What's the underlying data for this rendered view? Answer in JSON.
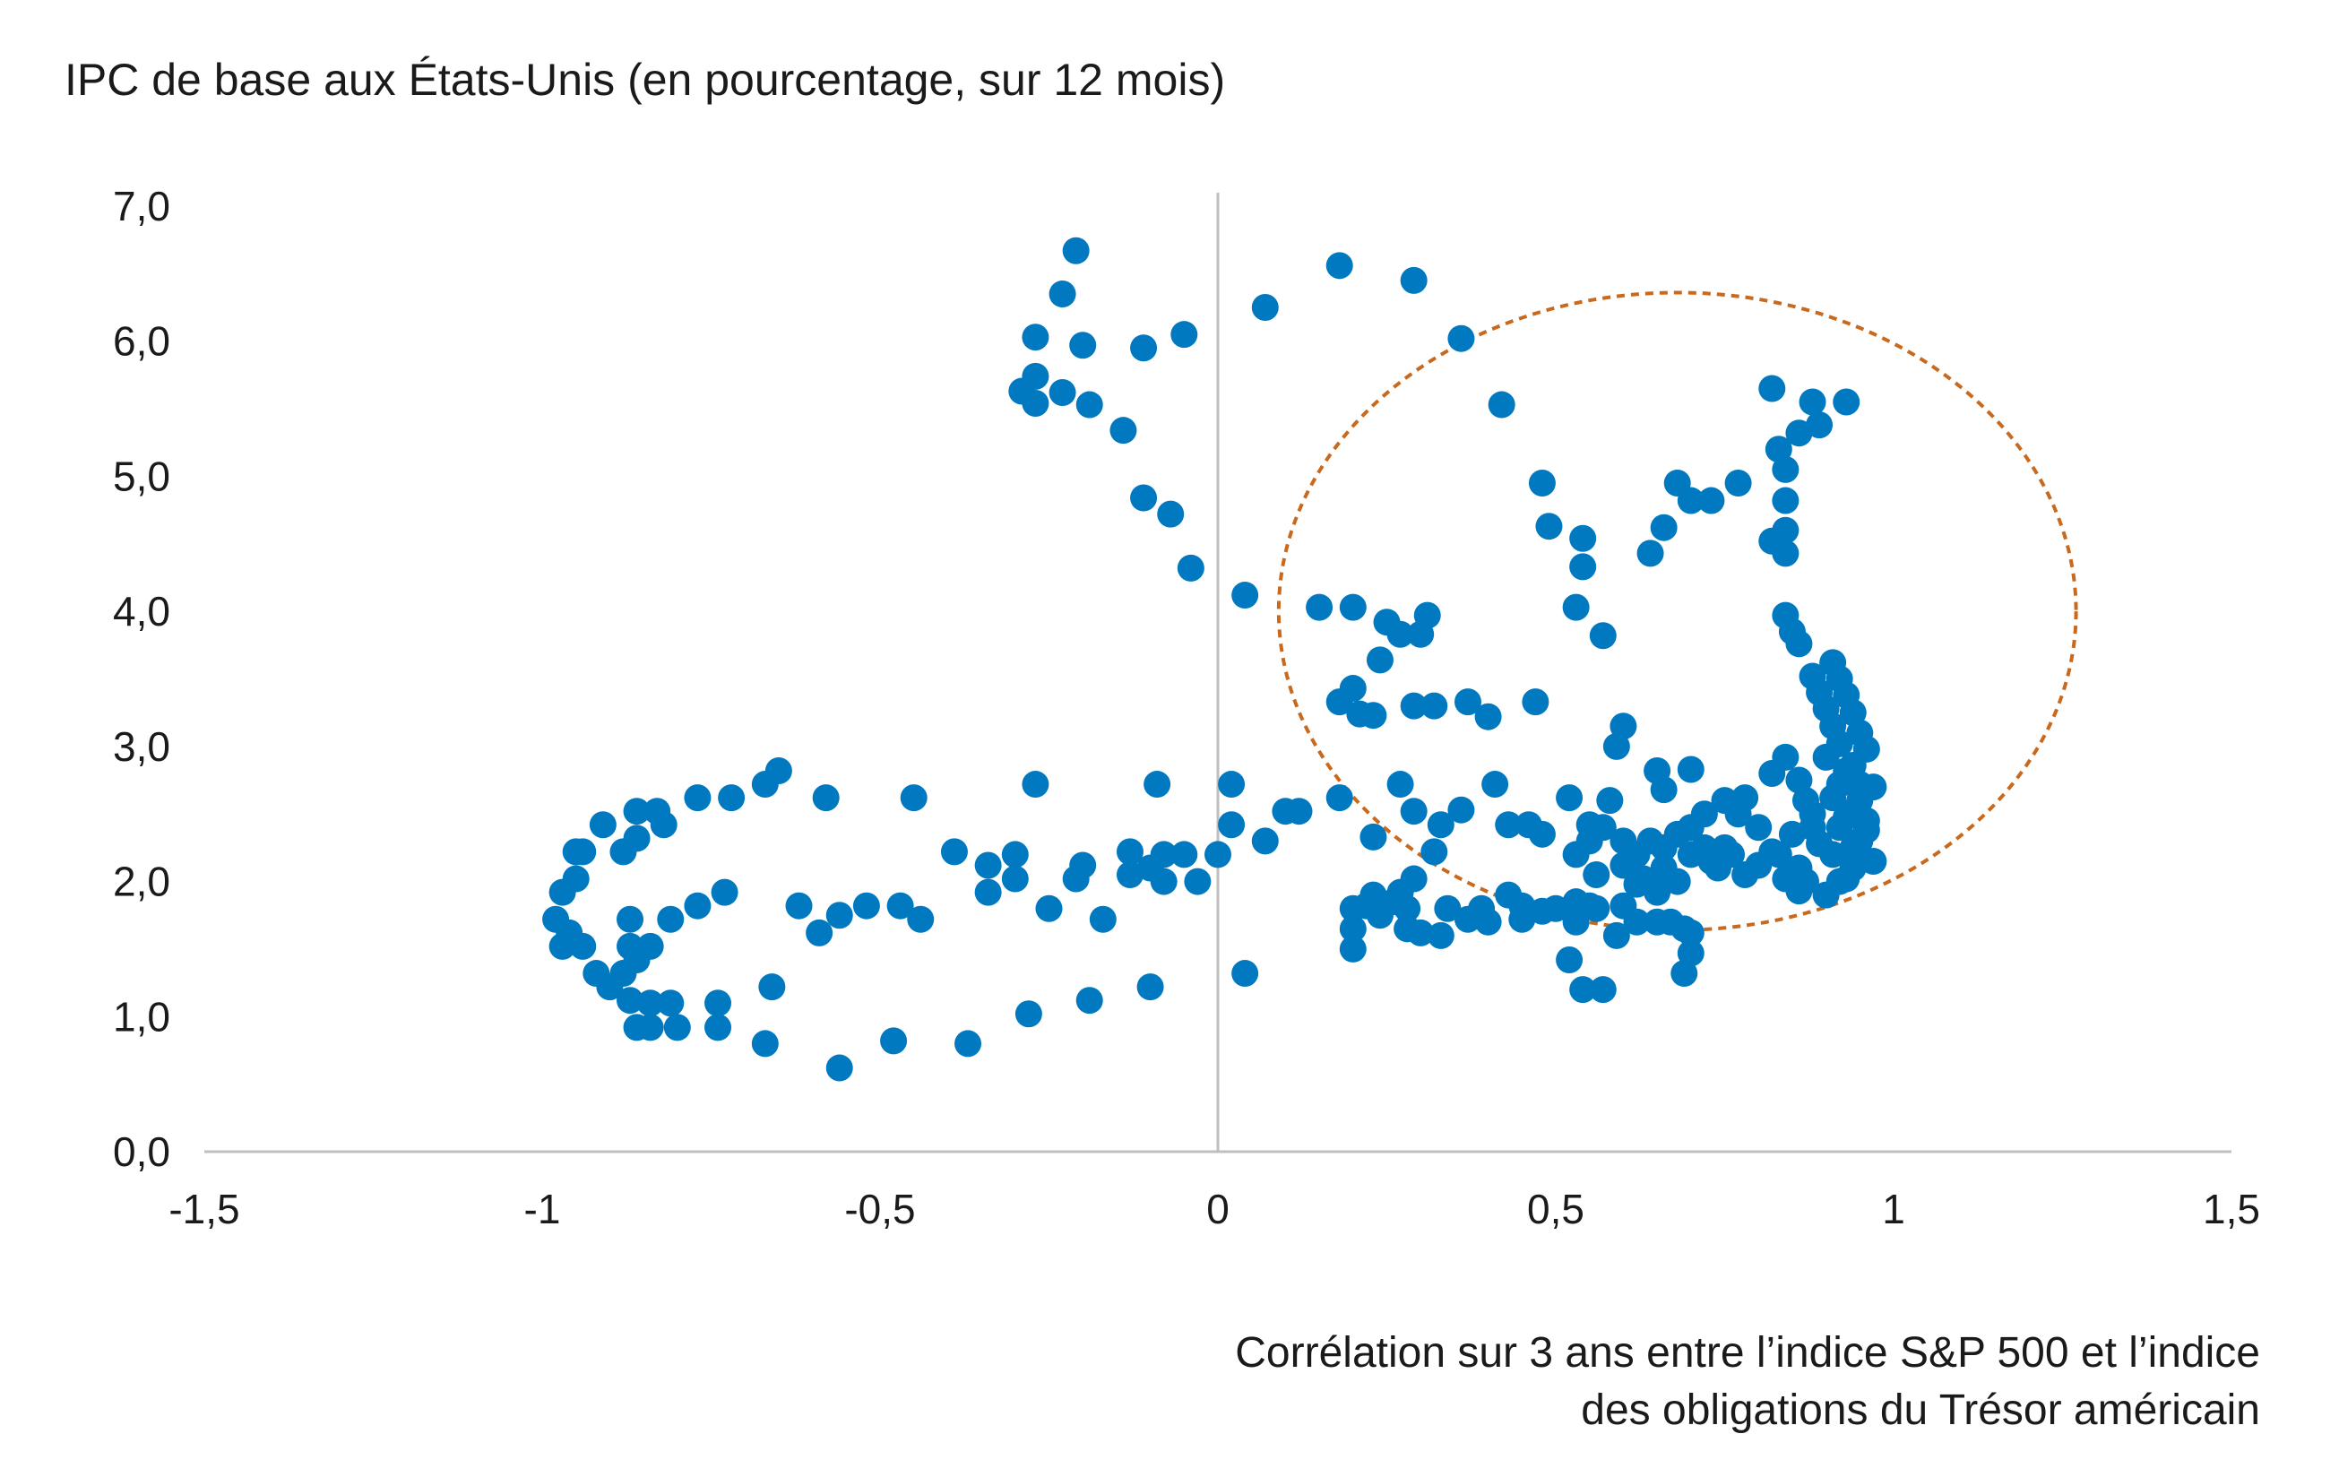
{
  "chart_data": {
    "type": "scatter",
    "ylabel": "IPC de base aux États-Unis (en pourcentage, sur 12 mois)",
    "xlabel_lines": [
      "Corrélation sur 3 ans entre l’indice S&P 500 et l’indice",
      "des obligations du Trésor américain"
    ],
    "xlim": [
      -1.5,
      1.5
    ],
    "ylim": [
      0,
      7
    ],
    "x_ticks": [
      -1.5,
      -1,
      -0.5,
      0,
      0.5,
      1,
      1.5
    ],
    "x_tick_labels": [
      "-1,5",
      "-1",
      "-0,5",
      "0",
      "0,5",
      "1",
      "1,5"
    ],
    "y_ticks": [
      0,
      1,
      2,
      3,
      4,
      5,
      6,
      7
    ],
    "y_tick_labels": [
      "0,0",
      "1,0",
      "2,0",
      "3,0",
      "4,0",
      "5,0",
      "6,0",
      "7,0"
    ],
    "grid": false,
    "point_color": "#0079C1",
    "annotation": {
      "shape": "dashed-ellipse",
      "color": "#C8691E",
      "center": [
        0.68,
        4.0
      ],
      "radii": [
        0.59,
        2.36
      ]
    },
    "points": [
      [
        -0.21,
        6.67
      ],
      [
        -0.23,
        6.35
      ],
      [
        -0.27,
        6.03
      ],
      [
        -0.2,
        5.97
      ],
      [
        -0.11,
        5.95
      ],
      [
        -0.05,
        6.05
      ],
      [
        -0.29,
        5.63
      ],
      [
        -0.27,
        5.74
      ],
      [
        -0.27,
        5.54
      ],
      [
        -0.23,
        5.62
      ],
      [
        -0.19,
        5.53
      ],
      [
        -0.14,
        5.34
      ],
      [
        -0.11,
        4.84
      ],
      [
        -0.07,
        4.72
      ],
      [
        -0.04,
        4.32
      ],
      [
        0.04,
        4.12
      ],
      [
        0.07,
        6.25
      ],
      [
        0.18,
        6.56
      ],
      [
        0.29,
        6.45
      ],
      [
        0.36,
        6.02
      ],
      [
        0.42,
        5.53
      ],
      [
        0.48,
        4.95
      ],
      [
        0.49,
        4.63
      ],
      [
        0.54,
        4.54
      ],
      [
        0.54,
        4.33
      ],
      [
        0.53,
        4.03
      ],
      [
        0.57,
        3.82
      ],
      [
        0.64,
        4.43
      ],
      [
        0.66,
        4.62
      ],
      [
        0.68,
        4.95
      ],
      [
        0.7,
        4.82
      ],
      [
        0.73,
        4.82
      ],
      [
        0.77,
        4.95
      ],
      [
        0.82,
        5.65
      ],
      [
        0.88,
        5.55
      ],
      [
        0.93,
        5.55
      ],
      [
        0.86,
        5.32
      ],
      [
        0.89,
        5.38
      ],
      [
        0.83,
        5.2
      ],
      [
        0.84,
        5.05
      ],
      [
        0.84,
        4.82
      ],
      [
        0.84,
        4.6
      ],
      [
        0.82,
        4.52
      ],
      [
        0.84,
        4.43
      ],
      [
        0.84,
        3.97
      ],
      [
        0.85,
        3.85
      ],
      [
        0.86,
        3.76
      ],
      [
        0.15,
        4.03
      ],
      [
        0.2,
        4.03
      ],
      [
        0.25,
        3.92
      ],
      [
        0.27,
        3.83
      ],
      [
        0.3,
        3.83
      ],
      [
        0.31,
        3.97
      ],
      [
        0.24,
        3.64
      ],
      [
        0.18,
        3.33
      ],
      [
        0.2,
        3.43
      ],
      [
        0.21,
        3.24
      ],
      [
        0.23,
        3.23
      ],
      [
        0.29,
        3.3
      ],
      [
        0.32,
        3.3
      ],
      [
        0.37,
        3.33
      ],
      [
        0.4,
        3.22
      ],
      [
        0.47,
        3.33
      ],
      [
        0.59,
        3.0
      ],
      [
        0.6,
        3.15
      ],
      [
        0.65,
        2.82
      ],
      [
        0.66,
        2.68
      ],
      [
        0.7,
        2.83
      ],
      [
        0.88,
        3.52
      ],
      [
        0.91,
        3.62
      ],
      [
        0.92,
        3.5
      ],
      [
        0.93,
        3.38
      ],
      [
        0.94,
        3.25
      ],
      [
        0.95,
        3.1
      ],
      [
        0.96,
        2.98
      ],
      [
        0.94,
        2.86
      ],
      [
        0.92,
        2.72
      ],
      [
        0.95,
        2.6
      ],
      [
        0.93,
        2.48
      ],
      [
        0.96,
        2.38
      ],
      [
        0.94,
        2.25
      ],
      [
        0.97,
        2.15
      ],
      [
        0.93,
        2.02
      ],
      [
        0.9,
        1.9
      ],
      [
        0.89,
        3.4
      ],
      [
        0.9,
        3.28
      ],
      [
        0.91,
        3.15
      ],
      [
        0.92,
        3.02
      ],
      [
        0.9,
        2.92
      ],
      [
        0.93,
        2.82
      ],
      [
        0.95,
        2.72
      ],
      [
        0.91,
        2.62
      ],
      [
        0.94,
        2.52
      ],
      [
        0.92,
        2.4
      ],
      [
        0.95,
        2.3
      ],
      [
        0.91,
        2.2
      ],
      [
        0.94,
        2.1
      ],
      [
        0.92,
        2.0
      ],
      [
        0.96,
        2.45
      ],
      [
        0.97,
        2.7
      ],
      [
        0.82,
        2.8
      ],
      [
        0.84,
        2.92
      ],
      [
        0.86,
        2.75
      ],
      [
        0.87,
        2.6
      ],
      [
        0.88,
        2.5
      ],
      [
        0.85,
        2.35
      ],
      [
        0.83,
        2.2
      ],
      [
        0.86,
        2.1
      ],
      [
        0.87,
        2.0
      ],
      [
        0.84,
        2.02
      ],
      [
        0.86,
        1.93
      ],
      [
        0.89,
        2.28
      ],
      [
        0.88,
        2.4
      ],
      [
        0.8,
        2.4
      ],
      [
        0.78,
        2.62
      ],
      [
        0.77,
        2.5
      ],
      [
        0.76,
        2.2
      ],
      [
        0.74,
        2.1
      ],
      [
        0.72,
        2.25
      ],
      [
        0.7,
        2.4
      ],
      [
        0.72,
        2.5
      ],
      [
        0.75,
        2.6
      ],
      [
        0.68,
        2.35
      ],
      [
        0.66,
        2.25
      ],
      [
        0.64,
        2.3
      ],
      [
        0.62,
        2.2
      ],
      [
        0.6,
        2.3
      ],
      [
        0.58,
        2.6
      ],
      [
        0.57,
        2.4
      ],
      [
        0.55,
        2.3
      ],
      [
        0.53,
        2.2
      ],
      [
        0.56,
        2.05
      ],
      [
        0.6,
        2.12
      ],
      [
        0.63,
        2.02
      ],
      [
        0.66,
        2.1
      ],
      [
        0.68,
        2.0
      ],
      [
        0.7,
        2.2
      ],
      [
        0.73,
        2.15
      ],
      [
        0.75,
        2.25
      ],
      [
        0.78,
        2.05
      ],
      [
        0.8,
        2.12
      ],
      [
        0.82,
        2.22
      ],
      [
        0.62,
        1.98
      ],
      [
        0.65,
        1.92
      ],
      [
        0.6,
        1.82
      ],
      [
        0.56,
        1.8
      ],
      [
        0.53,
        1.85
      ],
      [
        0.5,
        1.8
      ],
      [
        0.48,
        1.78
      ],
      [
        0.45,
        1.82
      ],
      [
        0.52,
        2.62
      ],
      [
        0.48,
        2.35
      ],
      [
        0.46,
        2.42
      ],
      [
        0.43,
        2.42
      ],
      [
        0.41,
        2.72
      ],
      [
        0.36,
        2.53
      ],
      [
        0.33,
        2.42
      ],
      [
        0.32,
        2.22
      ],
      [
        0.29,
        2.52
      ],
      [
        0.27,
        2.72
      ],
      [
        0.23,
        2.33
      ],
      [
        0.18,
        2.62
      ],
      [
        0.12,
        2.52
      ],
      [
        0.1,
        2.52
      ],
      [
        0.07,
        2.3
      ],
      [
        0.02,
        2.42
      ],
      [
        0.02,
        2.72
      ],
      [
        0.0,
        2.2
      ],
      [
        -0.05,
        2.2
      ],
      [
        -0.03,
        2.0
      ],
      [
        -0.08,
        2.2
      ],
      [
        -0.1,
        2.1
      ],
      [
        -0.13,
        2.22
      ],
      [
        -0.13,
        2.05
      ],
      [
        -0.08,
        2.0
      ],
      [
        -0.09,
        2.72
      ],
      [
        -0.2,
        2.12
      ],
      [
        -0.21,
        2.02
      ],
      [
        -0.27,
        2.72
      ],
      [
        -0.3,
        2.2
      ],
      [
        -0.3,
        2.02
      ],
      [
        -0.34,
        2.12
      ],
      [
        -0.34,
        1.92
      ],
      [
        -0.39,
        2.22
      ],
      [
        -0.45,
        2.62
      ],
      [
        -0.44,
        1.72
      ],
      [
        -0.47,
        1.82
      ],
      [
        -0.52,
        1.82
      ],
      [
        -0.56,
        1.75
      ],
      [
        -0.59,
        1.62
      ],
      [
        -0.58,
        2.62
      ],
      [
        -0.62,
        1.82
      ],
      [
        -0.65,
        2.82
      ],
      [
        -0.67,
        2.72
      ],
      [
        -0.72,
        2.62
      ],
      [
        -0.77,
        2.62
      ],
      [
        -0.82,
        2.42
      ],
      [
        -0.83,
        2.52
      ],
      [
        -0.86,
        2.52
      ],
      [
        -0.86,
        2.32
      ],
      [
        -0.88,
        2.22
      ],
      [
        -0.91,
        2.42
      ],
      [
        -0.94,
        2.22
      ],
      [
        -0.95,
        2.22
      ],
      [
        -0.95,
        2.02
      ],
      [
        -0.97,
        1.92
      ],
      [
        -0.98,
        1.72
      ],
      [
        -0.96,
        1.62
      ],
      [
        -0.97,
        1.52
      ],
      [
        -0.94,
        1.52
      ],
      [
        -0.92,
        1.32
      ],
      [
        -0.9,
        1.22
      ],
      [
        -0.88,
        1.32
      ],
      [
        -0.87,
        1.12
      ],
      [
        -0.84,
        1.1
      ],
      [
        -0.84,
        0.92
      ],
      [
        -0.86,
        0.92
      ],
      [
        -0.81,
        1.1
      ],
      [
        -0.8,
        0.92
      ],
      [
        -0.74,
        1.1
      ],
      [
        -0.74,
        0.92
      ],
      [
        -0.73,
        1.92
      ],
      [
        -0.77,
        1.82
      ],
      [
        -0.81,
        1.72
      ],
      [
        -0.87,
        1.72
      ],
      [
        -0.87,
        1.52
      ],
      [
        -0.84,
        1.52
      ],
      [
        -0.86,
        1.42
      ],
      [
        -0.66,
        1.22
      ],
      [
        -0.67,
        0.8
      ],
      [
        -0.56,
        0.62
      ],
      [
        -0.48,
        0.82
      ],
      [
        -0.37,
        0.8
      ],
      [
        -0.28,
        1.02
      ],
      [
        -0.25,
        1.8
      ],
      [
        -0.19,
        1.12
      ],
      [
        -0.17,
        1.72
      ],
      [
        -0.1,
        1.22
      ],
      [
        0.04,
        1.32
      ],
      [
        0.2,
        1.5
      ],
      [
        0.2,
        1.8
      ],
      [
        0.2,
        1.65
      ],
      [
        0.23,
        1.9
      ],
      [
        0.24,
        1.75
      ],
      [
        0.28,
        1.8
      ],
      [
        0.28,
        1.65
      ],
      [
        0.3,
        1.62
      ],
      [
        0.33,
        1.6
      ],
      [
        0.34,
        1.8
      ],
      [
        0.37,
        1.72
      ],
      [
        0.39,
        1.8
      ],
      [
        0.4,
        1.7
      ],
      [
        0.43,
        1.9
      ],
      [
        0.45,
        1.72
      ],
      [
        0.53,
        1.7
      ],
      [
        0.55,
        1.82
      ],
      [
        0.59,
        1.6
      ],
      [
        0.62,
        1.7
      ],
      [
        0.65,
        1.7
      ],
      [
        0.67,
        1.7
      ],
      [
        0.69,
        1.65
      ],
      [
        0.7,
        1.62
      ],
      [
        0.69,
        1.32
      ],
      [
        0.7,
        1.47
      ],
      [
        0.52,
        1.42
      ],
      [
        0.54,
        1.2
      ],
      [
        0.57,
        1.2
      ],
      [
        0.29,
        2.02
      ],
      [
        0.27,
        1.92
      ],
      [
        0.26,
        1.85
      ],
      [
        0.22,
        1.82
      ],
      [
        0.55,
        2.42
      ]
    ]
  }
}
